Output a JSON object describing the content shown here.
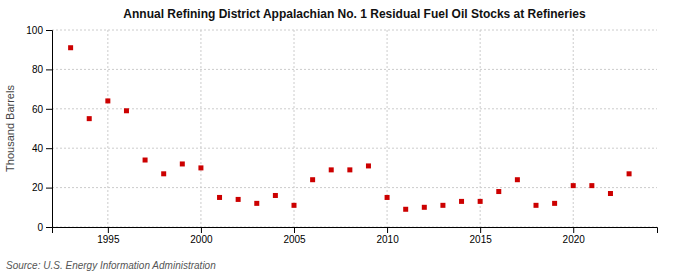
{
  "chart_data": {
    "type": "scatter",
    "title": "Annual Refining District Appalachian No. 1 Residual Fuel Oil Stocks at Refineries",
    "y_label": "Thousand Barrels",
    "source": "Source: U.S. Energy Information Administration",
    "x": [
      1993,
      1994,
      1995,
      1996,
      1997,
      1998,
      1999,
      2000,
      2001,
      2002,
      2003,
      2004,
      2005,
      2006,
      2007,
      2008,
      2009,
      2010,
      2011,
      2012,
      2013,
      2014,
      2015,
      2016,
      2017,
      2018,
      2019,
      2020,
      2021,
      2022,
      2023
    ],
    "values": [
      91,
      55,
      64,
      59,
      34,
      27,
      32,
      30,
      15,
      14,
      12,
      16,
      11,
      24,
      29,
      29,
      31,
      15,
      9,
      10,
      11,
      13,
      13,
      18,
      24,
      11,
      12,
      21,
      21,
      17,
      27
    ],
    "color": "#cc0000",
    "marker": "square",
    "xlim": [
      1992,
      2024.5
    ],
    "xticks": [
      1995,
      2000,
      2005,
      2010,
      2015,
      2020
    ],
    "ylim": [
      0,
      100
    ],
    "yticks": [
      0,
      20,
      40,
      60,
      80,
      100
    ],
    "grid": true
  }
}
